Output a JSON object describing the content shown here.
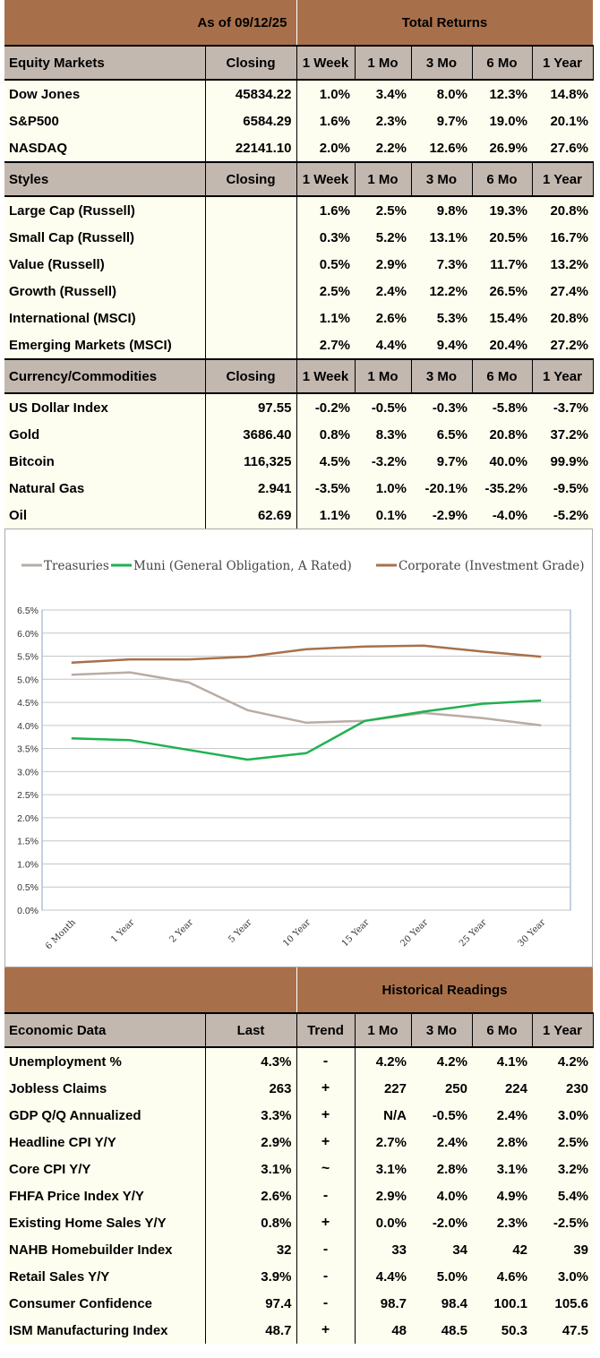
{
  "returns": {
    "as_of": "As of  09/12/25",
    "title": "Total Returns",
    "periods": [
      "1 Week",
      "1 Mo",
      "3 Mo",
      "6 Mo",
      "1 Year"
    ],
    "closing_label": "Closing",
    "sections": [
      {
        "header": "Equity Markets",
        "rows": [
          {
            "name": "Dow Jones",
            "closing": "45834.22",
            "values": [
              "1.0%",
              "3.4%",
              "8.0%",
              "12.3%",
              "14.8%"
            ],
            "neg": [
              false,
              false,
              false,
              false,
              false
            ]
          },
          {
            "name": "S&P500",
            "closing": "6584.29",
            "values": [
              "1.6%",
              "2.3%",
              "9.7%",
              "19.0%",
              "20.1%"
            ],
            "neg": [
              false,
              false,
              false,
              false,
              false
            ]
          },
          {
            "name": "NASDAQ",
            "closing": "22141.10",
            "values": [
              "2.0%",
              "2.2%",
              "12.6%",
              "26.9%",
              "27.6%"
            ],
            "neg": [
              false,
              false,
              false,
              false,
              false
            ]
          }
        ]
      },
      {
        "header": "Styles",
        "rows": [
          {
            "name": "Large Cap (Russell)",
            "closing": "",
            "values": [
              "1.6%",
              "2.5%",
              "9.8%",
              "19.3%",
              "20.8%"
            ],
            "neg": [
              false,
              false,
              false,
              false,
              false
            ]
          },
          {
            "name": "Small Cap (Russell)",
            "closing": "",
            "values": [
              "0.3%",
              "5.2%",
              "13.1%",
              "20.5%",
              "16.7%"
            ],
            "neg": [
              false,
              false,
              false,
              false,
              false
            ]
          },
          {
            "name": "Value (Russell)",
            "closing": "",
            "values": [
              "0.5%",
              "2.9%",
              "7.3%",
              "11.7%",
              "13.2%"
            ],
            "neg": [
              false,
              false,
              false,
              false,
              false
            ]
          },
          {
            "name": "Growth (Russell)",
            "closing": "",
            "values": [
              "2.5%",
              "2.4%",
              "12.2%",
              "26.5%",
              "27.4%"
            ],
            "neg": [
              false,
              false,
              false,
              false,
              false
            ]
          },
          {
            "name": "International (MSCI)",
            "closing": "",
            "values": [
              "1.1%",
              "2.6%",
              "5.3%",
              "15.4%",
              "20.8%"
            ],
            "neg": [
              false,
              false,
              false,
              false,
              false
            ]
          },
          {
            "name": "Emerging Markets (MSCI)",
            "closing": "",
            "values": [
              "2.7%",
              "4.4%",
              "9.4%",
              "20.4%",
              "27.2%"
            ],
            "neg": [
              false,
              false,
              false,
              false,
              false
            ]
          }
        ]
      },
      {
        "header": "Currency/Commodities",
        "rows": [
          {
            "name": "US Dollar Index",
            "closing": "97.55",
            "values": [
              "-0.2%",
              "-0.5%",
              "-0.3%",
              "-5.8%",
              "-3.7%"
            ],
            "neg": [
              true,
              true,
              true,
              true,
              true
            ]
          },
          {
            "name": "Gold",
            "closing": "3686.40",
            "values": [
              "0.8%",
              "8.3%",
              "6.5%",
              "20.8%",
              "37.2%"
            ],
            "neg": [
              false,
              false,
              false,
              false,
              false
            ]
          },
          {
            "name": "Bitcoin",
            "closing": "116,325",
            "values": [
              "4.5%",
              "-3.2%",
              "9.7%",
              "40.0%",
              "99.9%"
            ],
            "neg": [
              false,
              true,
              false,
              false,
              false
            ]
          },
          {
            "name": "Natural Gas",
            "closing": "2.941",
            "values": [
              "-3.5%",
              "1.0%",
              "-20.1%",
              "-35.2%",
              "-9.5%"
            ],
            "neg": [
              true,
              false,
              true,
              true,
              true
            ]
          },
          {
            "name": "Oil",
            "closing": "62.69",
            "values": [
              "1.1%",
              "0.1%",
              "-2.9%",
              "-4.0%",
              "-5.2%"
            ],
            "neg": [
              false,
              false,
              true,
              true,
              true
            ]
          }
        ]
      }
    ]
  },
  "chart_data": {
    "type": "line",
    "title": "",
    "xlabel": "",
    "ylabel": "",
    "categories": [
      "6 Month",
      "1 Year",
      "2 Year",
      "5 Year",
      "10 Year",
      "15 Year",
      "20 Year",
      "25 Year",
      "30 Year"
    ],
    "yticks": [
      "0.0%",
      "0.5%",
      "1.0%",
      "1.5%",
      "2.0%",
      "2.5%",
      "3.0%",
      "3.5%",
      "4.0%",
      "4.5%",
      "5.0%",
      "5.5%",
      "6.0%",
      "6.5%"
    ],
    "ylim": [
      0,
      6.5
    ],
    "grid": true,
    "legend_position": "top",
    "series": [
      {
        "name": "Treasuries",
        "color": "#b9aca4",
        "values": [
          5.1,
          5.15,
          4.93,
          4.33,
          4.06,
          4.1,
          4.27,
          4.16,
          4.0
        ]
      },
      {
        "name": "Muni (General Obligation, A Rated)",
        "color": "#1fb14f",
        "values": [
          3.72,
          3.68,
          3.47,
          3.26,
          3.4,
          4.1,
          4.3,
          4.47,
          4.54
        ]
      },
      {
        "name": "Corporate (Investment Grade)",
        "color": "#a8704a",
        "values": [
          5.36,
          5.43,
          5.43,
          5.49,
          5.65,
          5.71,
          5.73,
          5.6,
          5.49
        ]
      }
    ]
  },
  "historical": {
    "title": "Historical Readings",
    "header": {
      "name": "Economic Data",
      "last": "Last",
      "trend": "Trend",
      "periods": [
        "1 Mo",
        "3 Mo",
        "6 Mo",
        "1 Year"
      ]
    },
    "rows": [
      {
        "name": "Unemployment %",
        "last": "4.3%",
        "trend": "-",
        "trend_kind": "down",
        "values": [
          "4.2%",
          "4.2%",
          "4.1%",
          "4.2%"
        ]
      },
      {
        "name": "Jobless Claims",
        "last": "263",
        "trend": "+",
        "trend_kind": "up",
        "values": [
          "227",
          "250",
          "224",
          "230"
        ]
      },
      {
        "name": "GDP Q/Q Annualized",
        "last": "3.3%",
        "trend": "+",
        "trend_kind": "up",
        "values": [
          "N/A",
          "-0.5%",
          "2.4%",
          "3.0%"
        ]
      },
      {
        "name": "Headline CPI Y/Y",
        "last": "2.9%",
        "trend": "+",
        "trend_kind": "up",
        "values": [
          "2.7%",
          "2.4%",
          "2.8%",
          "2.5%"
        ]
      },
      {
        "name": "Core CPI Y/Y",
        "last": "3.1%",
        "trend": "~",
        "trend_kind": "flat",
        "values": [
          "3.1%",
          "2.8%",
          "3.1%",
          "3.2%"
        ]
      },
      {
        "name": "FHFA Price Index Y/Y",
        "last": "2.6%",
        "trend": "-",
        "trend_kind": "down",
        "values": [
          "2.9%",
          "4.0%",
          "4.9%",
          "5.4%"
        ]
      },
      {
        "name": "Existing Home Sales Y/Y",
        "last": "0.8%",
        "trend": "+",
        "trend_kind": "up",
        "values": [
          "0.0%",
          "-2.0%",
          "2.3%",
          "-2.5%"
        ]
      },
      {
        "name": "NAHB Homebuilder Index",
        "last": "32",
        "trend": "-",
        "trend_kind": "down",
        "values": [
          "33",
          "34",
          "42",
          "39"
        ]
      },
      {
        "name": "Retail Sales Y/Y",
        "last": "3.9%",
        "trend": "-",
        "trend_kind": "down",
        "values": [
          "4.4%",
          "5.0%",
          "4.6%",
          "3.0%"
        ]
      },
      {
        "name": "Consumer Confidence",
        "last": "97.4",
        "trend": "-",
        "trend_kind": "down",
        "values": [
          "98.7",
          "98.4",
          "100.1",
          "105.6"
        ]
      },
      {
        "name": "ISM Manufacturing Index",
        "last": "48.7",
        "trend": "+",
        "trend_kind": "up",
        "values": [
          "48",
          "48.5",
          "50.3",
          "47.5"
        ]
      }
    ]
  }
}
